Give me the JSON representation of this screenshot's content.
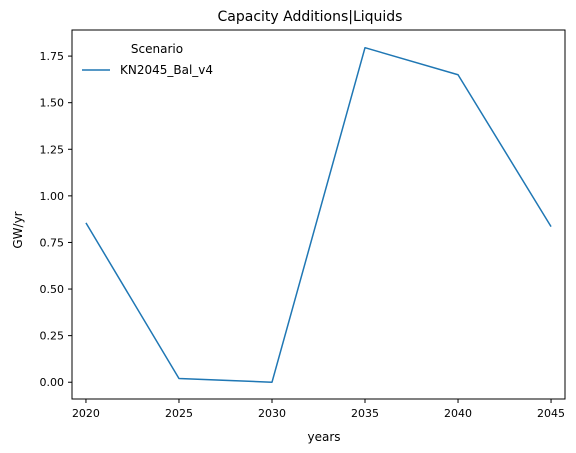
{
  "chart_data": {
    "type": "line",
    "title": "Capacity Additions|Liquids",
    "xlabel": "years",
    "ylabel": "GW/yr",
    "x": [
      2020,
      2025,
      2030,
      2035,
      2040,
      2045
    ],
    "xticks": [
      "2020",
      "2025",
      "2030",
      "2035",
      "2040",
      "2045"
    ],
    "yticks": [
      "0.00",
      "0.25",
      "0.50",
      "0.75",
      "1.00",
      "1.25",
      "1.50",
      "1.75"
    ],
    "ylim": [
      -0.09,
      1.89
    ],
    "xlim": [
      2019.25,
      2045.75
    ],
    "grid": false,
    "legend": {
      "title": "Scenario",
      "placement": "top-left"
    },
    "series": [
      {
        "name": "KN2045_Bal_v4",
        "color": "#1f77b4",
        "values": [
          0.855,
          0.02,
          0.0,
          1.795,
          1.65,
          0.835
        ]
      }
    ]
  }
}
